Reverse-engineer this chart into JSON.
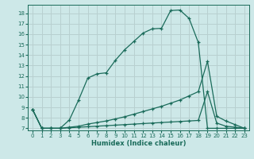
{
  "xlabel": "Humidex (Indice chaleur)",
  "bg_color": "#cde8e8",
  "grid_color": "#b8d0d0",
  "line_color": "#1a6b5a",
  "xlim": [
    -0.5,
    23.5
  ],
  "ylim": [
    6.8,
    18.8
  ],
  "xticks": [
    0,
    1,
    2,
    3,
    4,
    5,
    6,
    7,
    8,
    9,
    10,
    11,
    12,
    13,
    14,
    15,
    16,
    17,
    18,
    19,
    20,
    21,
    22,
    23
  ],
  "yticks": [
    7,
    8,
    9,
    10,
    11,
    12,
    13,
    14,
    15,
    16,
    17,
    18
  ],
  "line1_x": [
    0,
    1,
    2,
    3,
    4,
    5,
    6,
    7,
    8,
    9,
    10,
    11,
    12,
    13,
    14,
    15,
    16,
    17,
    18,
    19,
    20,
    21,
    22,
    23
  ],
  "line1_y": [
    8.8,
    7.0,
    7.0,
    7.0,
    7.8,
    9.7,
    11.8,
    12.2,
    12.3,
    13.5,
    14.5,
    15.3,
    16.1,
    16.5,
    16.55,
    18.25,
    18.3,
    17.5,
    15.2,
    7.0,
    7.0,
    7.0,
    7.0,
    7.0
  ],
  "line2_x": [
    0,
    1,
    2,
    3,
    4,
    5,
    6,
    7,
    8,
    9,
    10,
    11,
    12,
    13,
    14,
    15,
    16,
    17,
    18,
    19,
    20,
    21,
    22,
    23
  ],
  "line2_y": [
    8.8,
    7.0,
    7.0,
    7.0,
    7.1,
    7.2,
    7.4,
    7.55,
    7.7,
    7.9,
    8.1,
    8.35,
    8.6,
    8.85,
    9.1,
    9.4,
    9.7,
    10.1,
    10.5,
    13.4,
    8.15,
    7.7,
    7.35,
    7.0
  ],
  "line3_x": [
    0,
    1,
    2,
    3,
    4,
    5,
    6,
    7,
    8,
    9,
    10,
    11,
    12,
    13,
    14,
    15,
    16,
    17,
    18,
    19,
    20,
    21,
    22,
    23
  ],
  "line3_y": [
    8.8,
    7.0,
    7.0,
    7.0,
    7.05,
    7.1,
    7.15,
    7.2,
    7.25,
    7.3,
    7.35,
    7.4,
    7.45,
    7.5,
    7.55,
    7.6,
    7.65,
    7.7,
    7.75,
    10.5,
    7.5,
    7.2,
    7.1,
    7.0
  ]
}
